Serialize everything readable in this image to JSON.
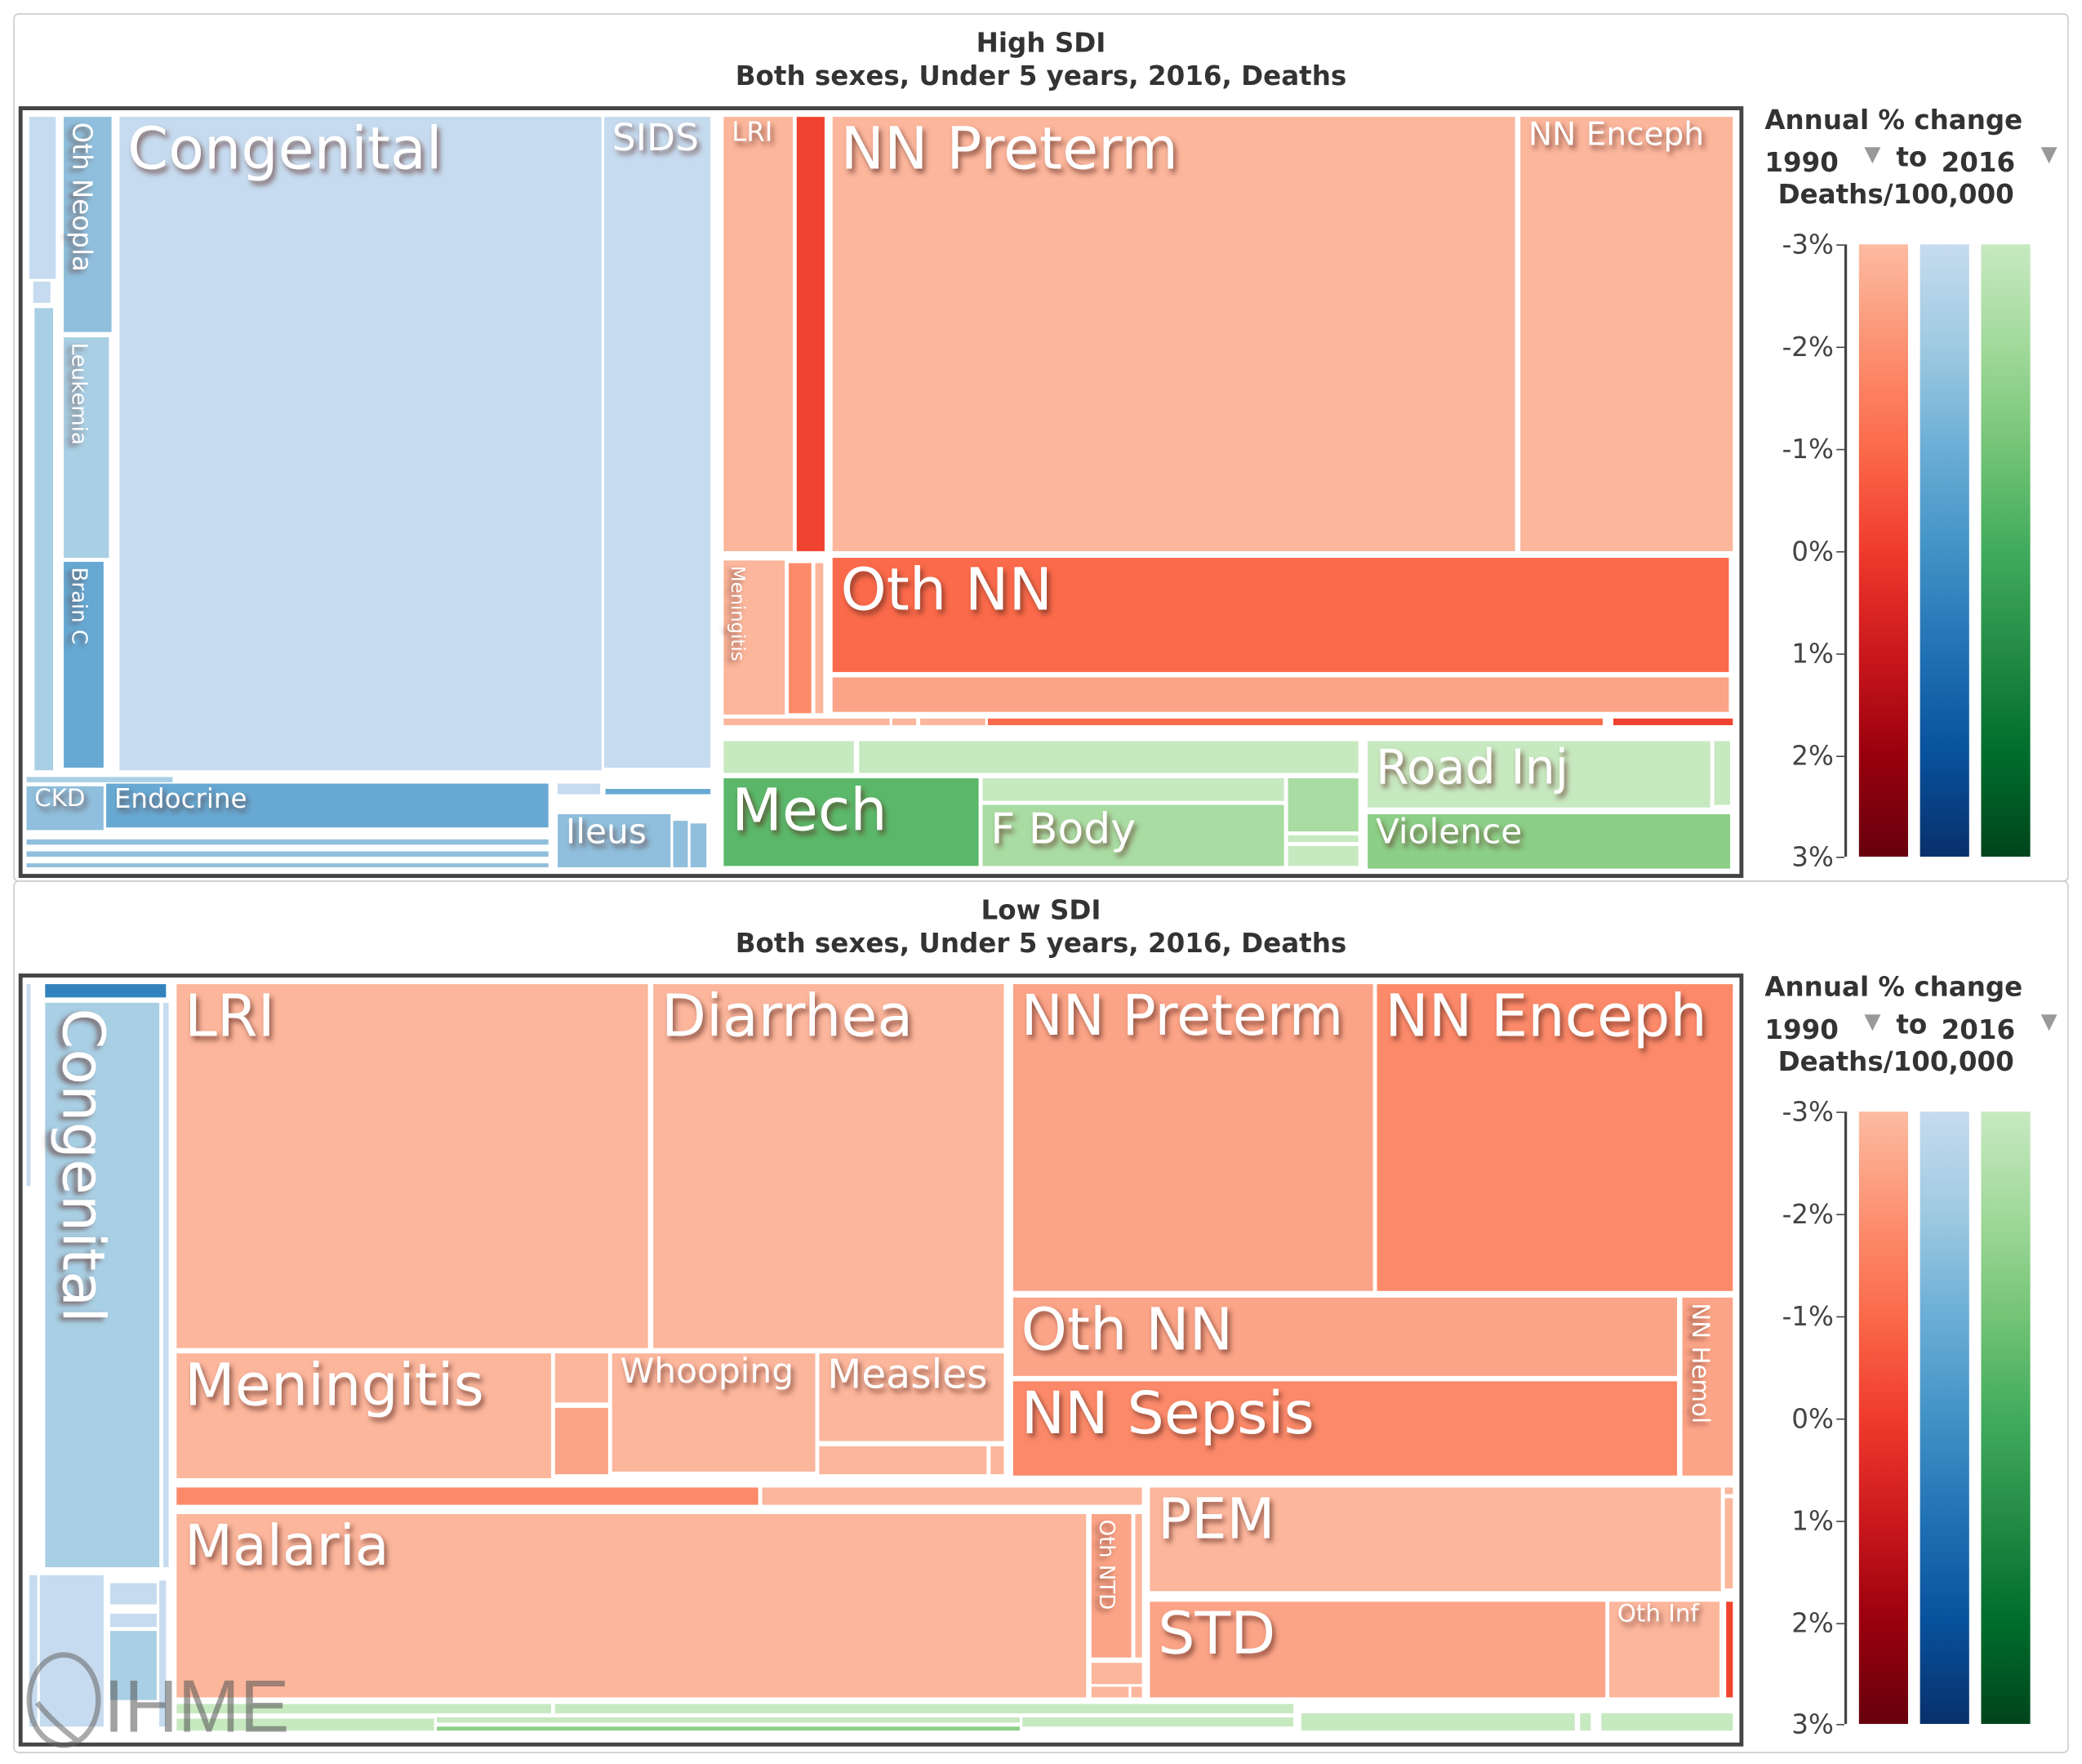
{
  "chart_data": [
    {
      "type": "treemap",
      "title": "High SDI",
      "subtitle": "Both sexes, Under 5 years, 2016, Deaths",
      "tile_labels": {
        "congenital": "Congenital",
        "sids": "SIDS",
        "oth_neopla": "Oth Neopla",
        "leukemia": "Leukemia",
        "brain_c": "Brain C",
        "ckd": "CKD",
        "endocrine": "Endocrine",
        "ileus": "Ileus",
        "lri": "LRI",
        "nn_preterm": "NN Preterm",
        "nn_enceph": "NN Enceph",
        "meningitis": "Meningitis",
        "oth_nn": "Oth NN",
        "mech": "Mech",
        "f_body": "F Body",
        "road_inj": "Road Inj",
        "violence": "Violence"
      },
      "legend": {
        "title": "Annual % change",
        "from_year": "1990",
        "to_label": "to",
        "to_year": "2016",
        "metric": "Deaths/100,000",
        "ticks": [
          "-3%",
          "-2%",
          "-1%",
          "0%",
          "1%",
          "2%",
          "3%"
        ],
        "range": [
          -3,
          3
        ]
      }
    },
    {
      "type": "treemap",
      "title": "Low SDI",
      "subtitle": "Both sexes, Under 5 years, 2016, Deaths",
      "tile_labels": {
        "congenital": "Congenital",
        "lri": "LRI",
        "diarrhea": "Diarrhea",
        "nn_preterm": "NN Preterm",
        "nn_enceph": "NN Enceph",
        "oth_nn": "Oth NN",
        "nn_sepsis": "NN Sepsis",
        "nn_hemol": "NN Hemol",
        "meningitis": "Meningitis",
        "whooping": "Whooping",
        "measles": "Measles",
        "malaria": "Malaria",
        "oth_ntd": "Oth NTD",
        "pem": "PEM",
        "std": "STD",
        "oth_inf": "Oth Inf"
      },
      "legend": {
        "title": "Annual % change",
        "from_year": "1990",
        "to_label": "to",
        "to_year": "2016",
        "metric": "Deaths/100,000",
        "ticks": [
          "-3%",
          "-2%",
          "-1%",
          "0%",
          "1%",
          "2%",
          "3%"
        ],
        "range": [
          -3,
          3
        ]
      }
    }
  ],
  "palette": {
    "r1": "#fbb69c",
    "r2": "#fba487",
    "r3": "#fc8a6a",
    "r4": "#fb6a4a",
    "r5": "#f0432f",
    "b1": "#c6dbef",
    "b2": "#a9cfe4",
    "b3": "#8fbfdc",
    "b4": "#67a9d3",
    "b5": "#3182bd",
    "g1": "#c7e9c0",
    "g2": "#a9dca2",
    "g3": "#8ccf87",
    "g4": "#5bb86a"
  },
  "legend_gradients": {
    "red": [
      "#fcbba1",
      "#fc9272",
      "#fb6a4a",
      "#ef3b2c",
      "#cb181d",
      "#99000d",
      "#67000d"
    ],
    "blue": [
      "#c6dbef",
      "#9ecae1",
      "#6baed6",
      "#4292c6",
      "#2171b5",
      "#08519c",
      "#08306b"
    ],
    "green": [
      "#c7e9c0",
      "#a1d99b",
      "#74c476",
      "#41ab5d",
      "#238b45",
      "#006d2c",
      "#00441b"
    ]
  },
  "logo": "IHME"
}
